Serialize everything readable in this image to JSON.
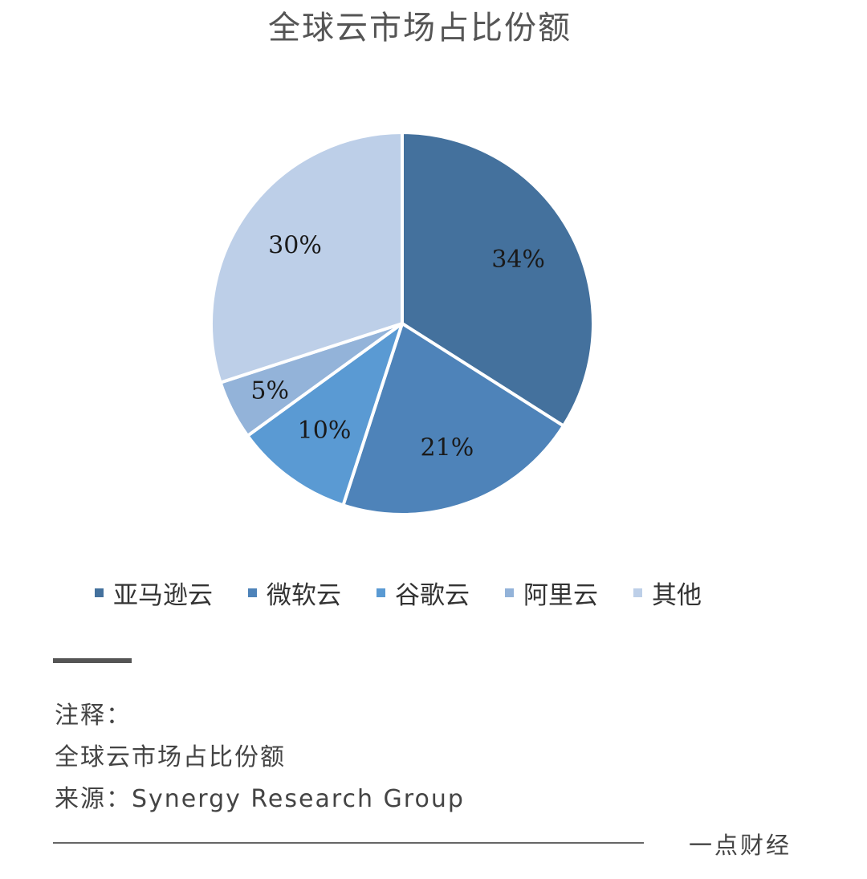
{
  "chart_data": {
    "type": "pie",
    "title": "全球云市场占比份额",
    "categories": [
      "亚马逊云",
      "微软云",
      "谷歌云",
      "阿里云",
      "其他"
    ],
    "values": [
      34,
      21,
      10,
      5,
      30
    ],
    "labels": [
      "34%",
      "21%",
      "10%",
      "5%",
      "30%"
    ],
    "colors": [
      "#44719d",
      "#4e83b9",
      "#5a9ad3",
      "#93b3d9",
      "#bdcfe8"
    ],
    "legend": "bottom"
  },
  "notes": {
    "heading": "注释：",
    "line1": "全球云市场占比份额",
    "line2": "来源：Synergy Research Group"
  },
  "footer": {
    "brand": "一点财经"
  }
}
